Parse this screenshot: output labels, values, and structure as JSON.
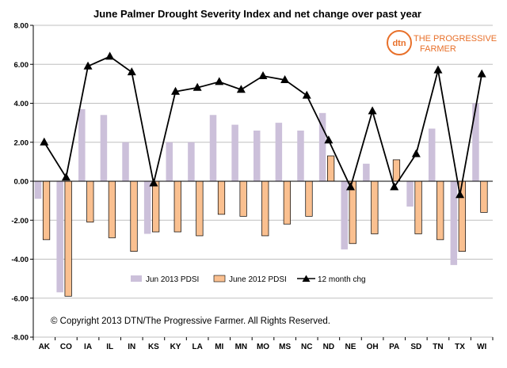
{
  "chart_data": {
    "type": "bar",
    "title": "June Palmer Drought Severity Index  and net change over past year",
    "categories": [
      "AK",
      "CO",
      "IA",
      "IL",
      "IN",
      "KS",
      "KY",
      "LA",
      "MI",
      "MN",
      "MO",
      "MS",
      "NC",
      "ND",
      "NE",
      "OH",
      "PA",
      "SD",
      "TN",
      "TX",
      "WI"
    ],
    "series": [
      {
        "name": "Jun 2013 PDSI",
        "type": "bar",
        "color": "#ccc0da",
        "values": [
          -0.9,
          -5.7,
          3.7,
          3.4,
          2.0,
          -2.7,
          2.0,
          2.0,
          3.4,
          2.9,
          2.6,
          3.0,
          2.6,
          3.5,
          -3.5,
          0.9,
          0.0,
          -1.3,
          2.7,
          -4.3,
          4.0
        ]
      },
      {
        "name": "June 2012 PDSI",
        "type": "bar",
        "color": "#fac090",
        "values": [
          -3.0,
          -5.9,
          -2.1,
          -2.9,
          -3.6,
          -2.6,
          -2.6,
          -2.8,
          -1.7,
          -1.8,
          -2.8,
          -2.2,
          -1.8,
          1.3,
          -3.2,
          -2.7,
          1.1,
          -2.7,
          -3.0,
          -3.6,
          -1.6
        ]
      },
      {
        "name": "12 month chg",
        "type": "line",
        "color": "#000000",
        "values": [
          2.0,
          0.2,
          5.9,
          6.4,
          5.6,
          -0.1,
          4.6,
          4.8,
          5.1,
          4.7,
          5.4,
          5.2,
          4.4,
          2.1,
          -0.3,
          3.6,
          -0.3,
          1.4,
          5.7,
          -0.7,
          5.5
        ]
      }
    ],
    "ylim": [
      -8,
      8
    ],
    "yticks": [
      "8.00",
      "6.00",
      "4.00",
      "2.00",
      "0.00",
      "-2.00",
      "-4.00",
      "-6.00",
      "-8.00"
    ],
    "ytick_values": [
      8,
      6,
      4,
      2,
      0,
      -2,
      -4,
      -6,
      -8
    ],
    "grid": true,
    "legend_position": "bottom-center",
    "annotation": "© Copyright 2013 DTN/The Progressive Farmer. All Rights Reserved.",
    "logo": {
      "badge": "dtn",
      "line1": "THE PROGRESSIVE",
      "line2": "FARMER",
      "color": "#e8702a"
    }
  }
}
